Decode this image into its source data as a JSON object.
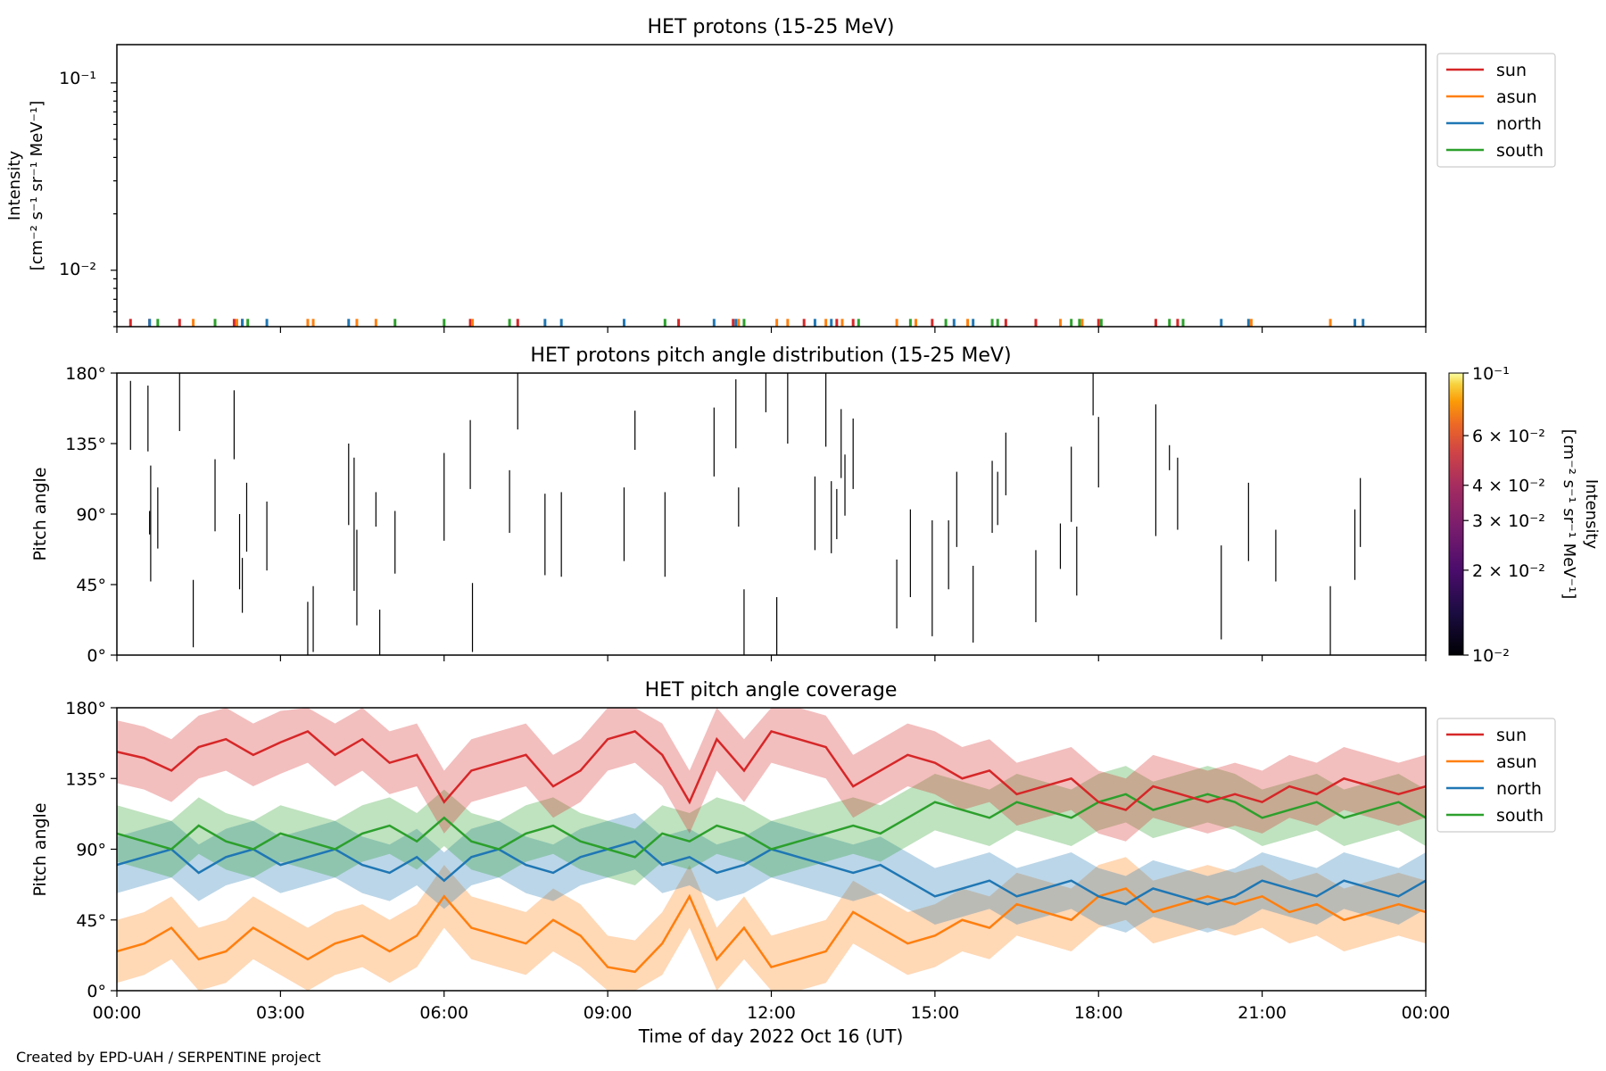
{
  "footer": {
    "credit": "Created by EPD-UAH / SERPENTINE project"
  },
  "chart_data": [
    {
      "type": "line",
      "title": "HET protons (15-25 MeV)",
      "ylabel_lines": [
        "Intensity",
        "[cm⁻² s⁻¹ sr⁻¹ MeV⁻¹]"
      ],
      "yscale": "log",
      "ylim": [
        0.005,
        0.16
      ],
      "ytick_labels": [
        "10⁻²",
        "10⁻¹"
      ],
      "xlim_hours": [
        0,
        24
      ],
      "legend": {
        "placement": "outside-right-top",
        "entries": [
          "sun",
          "asun",
          "north",
          "south"
        ]
      },
      "series": [
        {
          "name": "sun",
          "color": "#d62728",
          "x_hours": [
            0.25,
            0.6,
            1.15,
            2.15,
            2.3,
            6.48,
            7.35,
            10.3,
            11.3,
            12.6,
            13.2,
            13.5,
            14.95,
            16.3,
            16.85,
            18.0,
            19.05,
            19.45
          ],
          "y": [
            0.0055,
            0.0055,
            0.0055,
            0.0055,
            0.0055,
            0.0055,
            0.0055,
            0.0055,
            0.0055,
            0.0055,
            0.0055,
            0.0055,
            0.0055,
            0.0055,
            0.0055,
            0.0055,
            0.0055,
            0.0055
          ]
        },
        {
          "name": "asun",
          "color": "#ff7f0e",
          "x_hours": [
            1.4,
            2.2,
            3.5,
            3.6,
            4.4,
            4.75,
            6.52,
            11.4,
            12.1,
            12.3,
            13.0,
            13.3,
            14.3,
            14.65,
            15.6,
            17.3,
            17.7,
            20.8,
            22.25
          ],
          "y": [
            0.0055,
            0.0055,
            0.0055,
            0.0055,
            0.0055,
            0.0055,
            0.0055,
            0.0055,
            0.0055,
            0.0055,
            0.0055,
            0.0055,
            0.0055,
            0.0055,
            0.0055,
            0.0055,
            0.0055,
            0.0055,
            0.0055
          ]
        },
        {
          "name": "north",
          "color": "#1f77b4",
          "x_hours": [
            0.6,
            2.3,
            2.75,
            4.25,
            7.85,
            8.15,
            9.3,
            10.95,
            11.35,
            12.8,
            13.1,
            15.35,
            15.7,
            20.25,
            20.75,
            22.7,
            22.85
          ],
          "y": [
            0.0055,
            0.0055,
            0.0055,
            0.0055,
            0.0055,
            0.0055,
            0.0055,
            0.0055,
            0.0055,
            0.0055,
            0.0055,
            0.0055,
            0.0055,
            0.0055,
            0.0055,
            0.0055,
            0.0055
          ]
        },
        {
          "name": "south",
          "color": "#2ca02c",
          "x_hours": [
            0.75,
            1.8,
            2.4,
            5.1,
            6.0,
            7.2,
            10.05,
            11.5,
            13.6,
            14.55,
            15.2,
            16.05,
            16.15,
            17.5,
            17.65,
            18.05,
            19.3,
            19.55
          ],
          "y": [
            0.0055,
            0.0055,
            0.0055,
            0.0055,
            0.0055,
            0.0055,
            0.0055,
            0.0055,
            0.0055,
            0.0055,
            0.0055,
            0.0055,
            0.0055,
            0.0055,
            0.0055,
            0.0055,
            0.0055,
            0.0055
          ]
        }
      ]
    },
    {
      "type": "heatmap",
      "title": "HET protons pitch angle distribution (15-25 MeV)",
      "ylabel": "Pitch angle",
      "ylim": [
        0,
        180
      ],
      "ytick_labels": [
        "0°",
        "45°",
        "90°",
        "135°",
        "180°"
      ],
      "xlim_hours": [
        0,
        24
      ],
      "colorbar": {
        "label_lines": [
          "Intensity",
          "[cm⁻² s⁻¹ sr⁻¹ MeV⁻¹]"
        ],
        "scale": "log",
        "range": [
          0.01,
          0.1
        ],
        "tick_labels": [
          "10⁻²",
          "2 × 10⁻²",
          "3 × 10⁻²",
          "4 × 10⁻²",
          "6 × 10⁻²",
          "10⁻¹"
        ],
        "tick_values": [
          0.01,
          0.02,
          0.03,
          0.04,
          0.06,
          0.1
        ]
      },
      "segments": [
        [
          0.25,
          131,
          175
        ],
        [
          0.57,
          130,
          172
        ],
        [
          0.62,
          47,
          121
        ],
        [
          0.6,
          77,
          92
        ],
        [
          0.75,
          68,
          107
        ],
        [
          1.15,
          143,
          180
        ],
        [
          1.4,
          5,
          48
        ],
        [
          1.8,
          79,
          125
        ],
        [
          2.15,
          125,
          169
        ],
        [
          2.25,
          42,
          90
        ],
        [
          2.3,
          27,
          62
        ],
        [
          2.38,
          66,
          110
        ],
        [
          2.75,
          54,
          98
        ],
        [
          3.5,
          0,
          34
        ],
        [
          3.6,
          2,
          44
        ],
        [
          4.25,
          83,
          135
        ],
        [
          4.35,
          41,
          126
        ],
        [
          4.4,
          19,
          80
        ],
        [
          4.75,
          82,
          104
        ],
        [
          4.82,
          0,
          29
        ],
        [
          5.1,
          52,
          92
        ],
        [
          6.0,
          73,
          129
        ],
        [
          6.48,
          106,
          150
        ],
        [
          6.52,
          2,
          46
        ],
        [
          7.2,
          78,
          118
        ],
        [
          7.35,
          144,
          180
        ],
        [
          7.85,
          51,
          103
        ],
        [
          8.15,
          50,
          104
        ],
        [
          9.3,
          60,
          107
        ],
        [
          9.5,
          131,
          156
        ],
        [
          10.05,
          50,
          104
        ],
        [
          10.95,
          114,
          158
        ],
        [
          11.35,
          132,
          176
        ],
        [
          11.4,
          82,
          107
        ],
        [
          11.5,
          0,
          42
        ],
        [
          11.9,
          155,
          180
        ],
        [
          12.1,
          0,
          37
        ],
        [
          12.3,
          135,
          180
        ],
        [
          12.8,
          67,
          114
        ],
        [
          13.0,
          133,
          180
        ],
        [
          13.1,
          65,
          111
        ],
        [
          13.2,
          74,
          106
        ],
        [
          13.28,
          113,
          157
        ],
        [
          13.35,
          89,
          128
        ],
        [
          13.5,
          106,
          151
        ],
        [
          14.3,
          17,
          61
        ],
        [
          14.55,
          37,
          93
        ],
        [
          14.95,
          12,
          86
        ],
        [
          15.25,
          42,
          86
        ],
        [
          15.4,
          69,
          117
        ],
        [
          15.7,
          8,
          57
        ],
        [
          16.05,
          78,
          124
        ],
        [
          16.15,
          83,
          117
        ],
        [
          16.3,
          102,
          142
        ],
        [
          16.85,
          21,
          67
        ],
        [
          17.3,
          55,
          84
        ],
        [
          17.5,
          85,
          133
        ],
        [
          17.6,
          38,
          82
        ],
        [
          17.9,
          153,
          180
        ],
        [
          18.0,
          107,
          152
        ],
        [
          19.05,
          76,
          160
        ],
        [
          19.3,
          118,
          134
        ],
        [
          19.45,
          80,
          126
        ],
        [
          20.25,
          10,
          70
        ],
        [
          20.75,
          60,
          110
        ],
        [
          21.25,
          47,
          80
        ],
        [
          22.25,
          0,
          44
        ],
        [
          22.7,
          48,
          93
        ],
        [
          22.8,
          69,
          113
        ]
      ]
    },
    {
      "type": "line",
      "title": "HET pitch angle coverage",
      "ylabel": "Pitch angle",
      "xlabel": "Time of day 2022 Oct 16 (UT)",
      "ylim": [
        0,
        180
      ],
      "ytick_labels": [
        "0°",
        "45°",
        "90°",
        "135°",
        "180°"
      ],
      "xtick_labels": [
        "00:00",
        "03:00",
        "06:00",
        "09:00",
        "12:00",
        "15:00",
        "18:00",
        "21:00",
        "00:00"
      ],
      "xlim_hours": [
        0,
        24
      ],
      "legend": {
        "placement": "outside-right-top",
        "entries": [
          "sun",
          "asun",
          "north",
          "south"
        ]
      },
      "series": [
        {
          "name": "sun",
          "color": "#d62728",
          "band_halfwidth_deg": 20,
          "x_hours": [
            0,
            0.5,
            1,
            1.5,
            2,
            2.5,
            3,
            3.5,
            4,
            4.5,
            5,
            5.5,
            6,
            6.5,
            7,
            7.5,
            8,
            8.5,
            9,
            9.5,
            10,
            10.5,
            11,
            11.5,
            12,
            12.5,
            13,
            13.5,
            14,
            14.5,
            15,
            15.5,
            16,
            16.5,
            17,
            17.5,
            18,
            18.5,
            19,
            19.5,
            20,
            20.5,
            21,
            21.5,
            22,
            22.5,
            23,
            23.5,
            24
          ],
          "y": [
            152,
            148,
            140,
            155,
            160,
            150,
            158,
            165,
            150,
            160,
            145,
            150,
            120,
            140,
            145,
            150,
            130,
            140,
            160,
            165,
            150,
            120,
            160,
            140,
            165,
            160,
            155,
            130,
            140,
            150,
            145,
            135,
            140,
            125,
            130,
            135,
            120,
            115,
            130,
            125,
            120,
            125,
            120,
            130,
            125,
            135,
            130,
            125,
            130
          ]
        },
        {
          "name": "asun",
          "color": "#ff7f0e",
          "band_halfwidth_deg": 20,
          "x_hours": [
            0,
            0.5,
            1,
            1.5,
            2,
            2.5,
            3,
            3.5,
            4,
            4.5,
            5,
            5.5,
            6,
            6.5,
            7,
            7.5,
            8,
            8.5,
            9,
            9.5,
            10,
            10.5,
            11,
            11.5,
            12,
            12.5,
            13,
            13.5,
            14,
            14.5,
            15,
            15.5,
            16,
            16.5,
            17,
            17.5,
            18,
            18.5,
            19,
            19.5,
            20,
            20.5,
            21,
            21.5,
            22,
            22.5,
            23,
            23.5,
            24
          ],
          "y": [
            25,
            30,
            40,
            20,
            25,
            40,
            30,
            20,
            30,
            35,
            25,
            35,
            60,
            40,
            35,
            30,
            45,
            35,
            15,
            12,
            30,
            60,
            20,
            40,
            15,
            20,
            25,
            50,
            40,
            30,
            35,
            45,
            40,
            55,
            50,
            45,
            60,
            65,
            50,
            55,
            60,
            55,
            60,
            50,
            55,
            45,
            50,
            55,
            50
          ]
        },
        {
          "name": "north",
          "color": "#1f77b4",
          "band_halfwidth_deg": 18,
          "x_hours": [
            0,
            0.5,
            1,
            1.5,
            2,
            2.5,
            3,
            3.5,
            4,
            4.5,
            5,
            5.5,
            6,
            6.5,
            7,
            7.5,
            8,
            8.5,
            9,
            9.5,
            10,
            10.5,
            11,
            11.5,
            12,
            12.5,
            13,
            13.5,
            14,
            14.5,
            15,
            15.5,
            16,
            16.5,
            17,
            17.5,
            18,
            18.5,
            19,
            19.5,
            20,
            20.5,
            21,
            21.5,
            22,
            22.5,
            23,
            23.5,
            24
          ],
          "y": [
            80,
            85,
            90,
            75,
            85,
            90,
            80,
            85,
            90,
            80,
            75,
            85,
            70,
            85,
            90,
            80,
            75,
            85,
            90,
            95,
            80,
            85,
            75,
            80,
            90,
            85,
            80,
            75,
            80,
            70,
            60,
            65,
            70,
            60,
            65,
            70,
            60,
            55,
            65,
            60,
            55,
            60,
            70,
            65,
            60,
            70,
            65,
            60,
            70
          ]
        },
        {
          "name": "south",
          "color": "#2ca02c",
          "band_halfwidth_deg": 18,
          "x_hours": [
            0,
            0.5,
            1,
            1.5,
            2,
            2.5,
            3,
            3.5,
            4,
            4.5,
            5,
            5.5,
            6,
            6.5,
            7,
            7.5,
            8,
            8.5,
            9,
            9.5,
            10,
            10.5,
            11,
            11.5,
            12,
            12.5,
            13,
            13.5,
            14,
            14.5,
            15,
            15.5,
            16,
            16.5,
            17,
            17.5,
            18,
            18.5,
            19,
            19.5,
            20,
            20.5,
            21,
            21.5,
            22,
            22.5,
            23,
            23.5,
            24
          ],
          "y": [
            100,
            95,
            90,
            105,
            95,
            90,
            100,
            95,
            90,
            100,
            105,
            95,
            110,
            95,
            90,
            100,
            105,
            95,
            90,
            85,
            100,
            95,
            105,
            100,
            90,
            95,
            100,
            105,
            100,
            110,
            120,
            115,
            110,
            120,
            115,
            110,
            120,
            125,
            115,
            120,
            125,
            120,
            110,
            115,
            120,
            110,
            115,
            120,
            110
          ]
        }
      ]
    }
  ]
}
